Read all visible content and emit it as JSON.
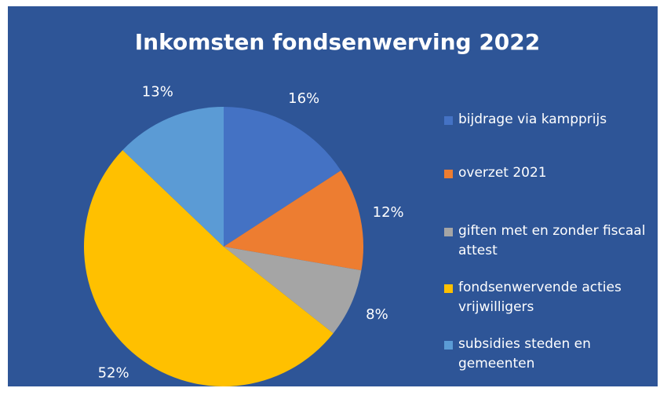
{
  "chart_data": {
    "type": "pie",
    "title": "Inkomsten fondsenwerving 2022",
    "categories": [
      "bijdrage via kampprijs",
      "overzet 2021",
      "giften met en zonder fiscaal attest",
      "fondsenwervende acties vrijwilligers",
      "subsidies steden en gemeenten"
    ],
    "values": [
      16,
      12,
      8,
      52,
      13
    ],
    "value_labels": [
      "16%",
      "12%",
      "8%",
      "52%",
      "13%"
    ],
    "colors": [
      "#4472c4",
      "#ed7d31",
      "#a5a5a5",
      "#ffc000",
      "#5b9bd5"
    ],
    "legend": "right"
  }
}
